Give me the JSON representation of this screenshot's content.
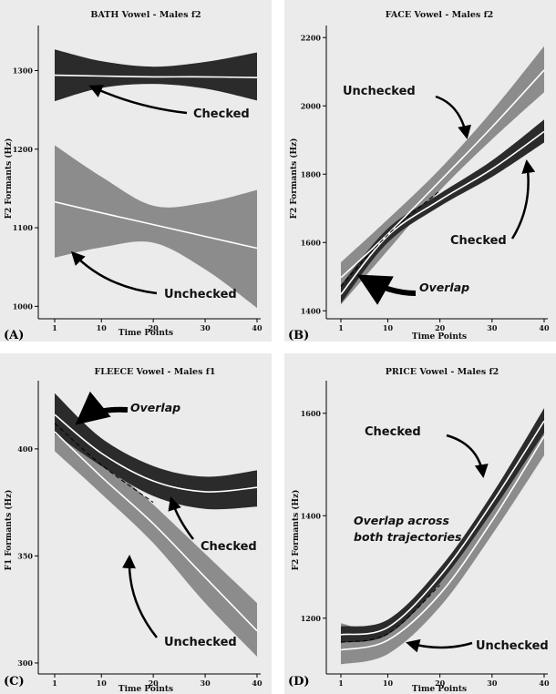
{
  "chart_data": [
    {
      "type": "line",
      "title": "BATH Vowel - Males f2",
      "panel_label": "(A)",
      "xlabel": "Time Points",
      "ylabel": "F2 Formants (Hz)",
      "xlim": [
        0,
        41
      ],
      "ylim": [
        990,
        1355
      ],
      "xticks": [
        1,
        10,
        20,
        30,
        40
      ],
      "yticks": [
        1000,
        1100,
        1200,
        1300
      ],
      "grid": false,
      "series": [
        {
          "name": "Checked",
          "style": "dark",
          "x": [
            1,
            10,
            20,
            30,
            40
          ],
          "y": [
            1294,
            1293,
            1292,
            1292,
            1291
          ],
          "lower": [
            1261,
            1278,
            1283,
            1277,
            1262
          ],
          "upper": [
            1327,
            1312,
            1305,
            1311,
            1323
          ]
        },
        {
          "name": "Unchecked",
          "style": "gray",
          "x": [
            1,
            10,
            20,
            30,
            40
          ],
          "y": [
            1133,
            1119,
            1104,
            1089,
            1074
          ],
          "lower": [
            1062,
            1075,
            1081,
            1047,
            998
          ],
          "upper": [
            1205,
            1165,
            1128,
            1132,
            1148
          ]
        }
      ],
      "annotations": [
        {
          "text": "Checked",
          "style": "bold"
        },
        {
          "text": "Unchecked",
          "style": "bold"
        }
      ]
    },
    {
      "type": "line",
      "title": "FACE Vowel - Males f2",
      "panel_label": "(B)",
      "xlabel": "Time Points",
      "ylabel": "F2 Formants (Hz)",
      "xlim": [
        0,
        41
      ],
      "ylim": [
        1390,
        2230
      ],
      "xticks": [
        1,
        10,
        20,
        30,
        40
      ],
      "yticks": [
        1400,
        1600,
        1800,
        2000,
        2200
      ],
      "grid": false,
      "series": [
        {
          "name": "Unchecked",
          "style": "gray",
          "x": [
            1,
            10,
            20,
            30,
            40
          ],
          "y": [
            1497,
            1625,
            1780,
            1938,
            2105
          ],
          "lower": [
            1418,
            1577,
            1752,
            1902,
            2040
          ],
          "upper": [
            1542,
            1668,
            1815,
            1985,
            2175
          ]
        },
        {
          "name": "Checked",
          "style": "dark",
          "x": [
            1,
            10,
            20,
            30,
            40
          ],
          "y": [
            1448,
            1620,
            1724,
            1815,
            1925
          ],
          "lower": [
            1422,
            1600,
            1706,
            1792,
            1893
          ],
          "upper": [
            1475,
            1641,
            1743,
            1840,
            1960
          ]
        }
      ],
      "annotations": [
        {
          "text": "Unchecked",
          "style": "bold"
        },
        {
          "text": "Checked",
          "style": "bold"
        },
        {
          "text": "Overlap",
          "style": "italic"
        }
      ]
    },
    {
      "type": "line",
      "title": "FLEECE Vowel - Males f1",
      "panel_label": "(C)",
      "xlabel": "Time Points",
      "ylabel": "F1 Formants (Hz)",
      "xlim": [
        0,
        41
      ],
      "ylim": [
        297,
        431
      ],
      "xticks": [
        1,
        10,
        20,
        30,
        40
      ],
      "yticks": [
        300,
        350,
        400
      ],
      "grid": false,
      "series": [
        {
          "name": "Checked",
          "style": "dark",
          "x": [
            1,
            10,
            20,
            30,
            40
          ],
          "y": [
            416,
            398,
            385,
            380,
            382
          ],
          "lower": [
            407,
            392,
            378,
            372,
            373
          ],
          "upper": [
            426,
            405,
            392,
            387,
            390
          ]
        },
        {
          "name": "Unchecked",
          "style": "gray",
          "x": [
            1,
            10,
            20,
            30,
            40
          ],
          "y": [
            408,
            387,
            365,
            340,
            315
          ],
          "lower": [
            399,
            379,
            356,
            328,
            303
          ],
          "upper": [
            421,
            396,
            374,
            351,
            328
          ]
        }
      ],
      "annotations": [
        {
          "text": "Overlap",
          "style": "italic"
        },
        {
          "text": "Checked",
          "style": "bold"
        },
        {
          "text": "Unchecked",
          "style": "bold"
        }
      ]
    },
    {
      "type": "line",
      "title": "PRICE Vowel - Males f2",
      "panel_label": "(D)",
      "xlabel": "Time Points",
      "ylabel": "F2 Formants (Hz)",
      "xlim": [
        0,
        41
      ],
      "ylim": [
        1100,
        1660
      ],
      "xticks": [
        1,
        10,
        20,
        30,
        40
      ],
      "yticks": [
        1200,
        1400,
        1600
      ],
      "grid": false,
      "series": [
        {
          "name": "Checked",
          "style": "dark",
          "x": [
            1,
            10,
            20,
            30,
            40
          ],
          "y": [
            1168,
            1182,
            1282,
            1425,
            1585
          ],
          "lower": [
            1152,
            1168,
            1268,
            1408,
            1562
          ],
          "upper": [
            1184,
            1197,
            1298,
            1442,
            1610
          ]
        },
        {
          "name": "Unchecked",
          "style": "gray",
          "x": [
            1,
            10,
            20,
            30,
            40
          ],
          "y": [
            1138,
            1157,
            1247,
            1390,
            1555
          ],
          "lower": [
            1110,
            1130,
            1222,
            1363,
            1518
          ],
          "upper": [
            1190,
            1178,
            1268,
            1415,
            1602
          ]
        }
      ],
      "annotations": [
        {
          "text": "Checked",
          "style": "bold"
        },
        {
          "text": "Overlap across",
          "style": "italic"
        },
        {
          "text": "both trajectories",
          "style": "italic"
        },
        {
          "text": "Unchecked",
          "style": "bold"
        }
      ]
    }
  ],
  "colors": {
    "checked_band": "#2b2b2b",
    "unchecked_band": "#8c8c8c",
    "panel_background": "#ebebeb",
    "fit_line": "#ffffff",
    "overlap_dash": "#000000",
    "axis": "#000000"
  }
}
